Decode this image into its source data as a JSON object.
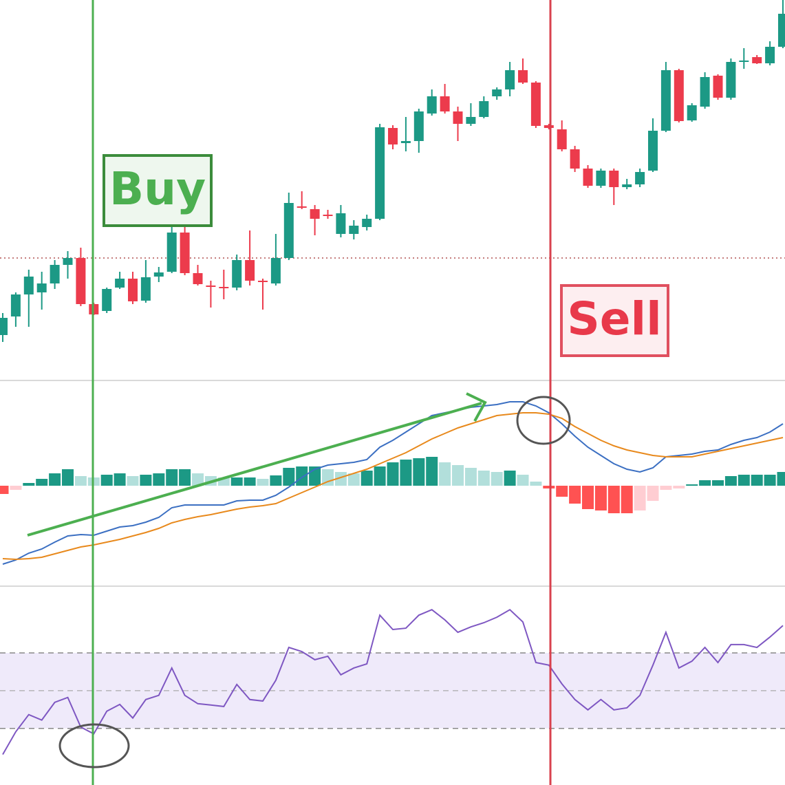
{
  "chart_data": [
    {
      "type": "candlestick",
      "up_color": "#1c9985",
      "down_color": "#ec3b4c",
      "open": [
        73,
        100,
        132,
        135,
        148,
        175,
        185,
        118,
        108,
        142,
        155,
        123,
        158,
        165,
        222,
        163,
        145,
        143,
        142,
        182,
        152,
        148,
        185,
        260,
        256,
        248,
        220,
        220,
        230,
        242,
        374,
        352,
        355,
        395,
        420,
        398,
        380,
        390,
        420,
        430,
        458,
        440,
        378,
        372,
        343,
        315,
        290,
        312,
        288,
        292,
        312,
        370,
        458,
        385,
        405,
        450,
        418,
        470,
        477,
        468,
        492
      ],
      "high": [
        105,
        135,
        168,
        165,
        182,
        195,
        200,
        120,
        142,
        165,
        165,
        182,
        172,
        240,
        240,
        175,
        152,
        168,
        190,
        225,
        155,
        220,
        280,
        282,
        262,
        255,
        262,
        240,
        248,
        380,
        378,
        390,
        402,
        430,
        438,
        405,
        410,
        420,
        433,
        470,
        475,
        442,
        380,
        385,
        348,
        320,
        315,
        315,
        300,
        315,
        388,
        470,
        460,
        410,
        455,
        452,
        475,
        490,
        480,
        500,
        560
      ],
      "low": [
        63,
        85,
        85,
        110,
        140,
        155,
        115,
        102,
        105,
        140,
        118,
        120,
        150,
        163,
        160,
        145,
        113,
        125,
        138,
        145,
        110,
        145,
        182,
        256,
        218,
        242,
        215,
        212,
        225,
        240,
        343,
        340,
        338,
        392,
        395,
        355,
        377,
        388,
        415,
        420,
        438,
        374,
        372,
        340,
        310,
        287,
        287,
        262,
        285,
        288,
        310,
        368,
        382,
        383,
        402,
        415,
        415,
        460,
        467,
        465,
        490
      ],
      "close": [
        98,
        132,
        158,
        148,
        175,
        185,
        118,
        103,
        140,
        155,
        122,
        157,
        164,
        222,
        163,
        147,
        143,
        141,
        182,
        152,
        150,
        185,
        265,
        258,
        242,
        246,
        250,
        232,
        242,
        375,
        350,
        355,
        398,
        420,
        398,
        380,
        390,
        413,
        430,
        458,
        440,
        377,
        374,
        343,
        315,
        290,
        312,
        288,
        292,
        310,
        370,
        458,
        384,
        407,
        448,
        418,
        470,
        472,
        468,
        492,
        540
      ],
      "ylim": [
        8,
        560
      ],
      "reference_level": 185,
      "annotations": [
        "Buy",
        "Sell"
      ]
    },
    {
      "type": "macd",
      "histogram": {
        "up_color": "#1c9985",
        "up_fade_color": "#b2dfdb",
        "down_color": "#ff5252",
        "down_fade_color": "#ffcdd2",
        "values": [
          -12,
          -6,
          4,
          10,
          18,
          24,
          14,
          12,
          16,
          18,
          14,
          16,
          18,
          24,
          24,
          18,
          14,
          12,
          12,
          12,
          10,
          15,
          26,
          28,
          28,
          24,
          20,
          18,
          22,
          28,
          34,
          38,
          40,
          42,
          34,
          30,
          26,
          22,
          20,
          22,
          16,
          6,
          -4,
          -16,
          -26,
          -34,
          -36,
          -40,
          -40,
          -36,
          -22,
          -6,
          -4,
          2,
          8,
          8,
          14,
          16,
          16,
          16,
          20
        ]
      },
      "series": [
        {
          "color": "#3b6fc2",
          "values": [
            -114,
            -108,
            -98,
            -92,
            -82,
            -73,
            -71,
            -72,
            -66,
            -60,
            -58,
            -53,
            -46,
            -32,
            -28,
            -28,
            -28,
            -28,
            -22,
            -21,
            -21,
            -14,
            -2,
            12,
            24,
            30,
            32,
            34,
            38,
            56,
            66,
            78,
            90,
            102,
            106,
            110,
            114,
            116,
            118,
            122,
            122,
            116,
            106,
            90,
            72,
            56,
            44,
            32,
            24,
            20,
            26,
            42,
            44,
            46,
            50,
            52,
            60,
            66,
            70,
            78,
            90
          ]
        },
        {
          "color": "#e8891c",
          "values": [
            -106,
            -107,
            -106,
            -104,
            -99,
            -94,
            -89,
            -86,
            -82,
            -78,
            -73,
            -68,
            -62,
            -54,
            -49,
            -45,
            -42,
            -38,
            -34,
            -31,
            -29,
            -26,
            -18,
            -10,
            -2,
            6,
            12,
            18,
            24,
            32,
            40,
            48,
            58,
            68,
            76,
            84,
            90,
            96,
            102,
            104,
            106,
            106,
            104,
            98,
            86,
            76,
            66,
            58,
            52,
            48,
            44,
            42,
            42,
            42,
            46,
            50,
            54,
            58,
            62,
            66,
            70
          ]
        }
      ],
      "ylim": [
        -144,
        151
      ]
    },
    {
      "type": "line",
      "color": "#7e57c2",
      "band_color": "#efeafa",
      "values": [
        16.2,
        28.2,
        37.3,
        34.4,
        43.8,
        46.4,
        30.7,
        27.1,
        39.1,
        42.7,
        35.5,
        45.3,
        47.5,
        62,
        47.5,
        43.1,
        42.4,
        41.6,
        53.3,
        45.3,
        44.5,
        55.5,
        72.9,
        70.7,
        66.4,
        68.2,
        58.4,
        62,
        64.2,
        90,
        82.4,
        83.1,
        90,
        92.9,
        87.5,
        80.9,
        83.8,
        86,
        88.9,
        92.9,
        86.4,
        64.9,
        63.5,
        53.6,
        45.3,
        39.8,
        45.3,
        39.8,
        40.9,
        47.5,
        63.5,
        80.9,
        62,
        65.6,
        72.9,
        64.9,
        74.4,
        74.4,
        72.9,
        78.4,
        84.5
      ],
      "band": [
        30,
        70
      ],
      "midline": 50,
      "ylim": [
        0,
        105
      ]
    }
  ]
}
